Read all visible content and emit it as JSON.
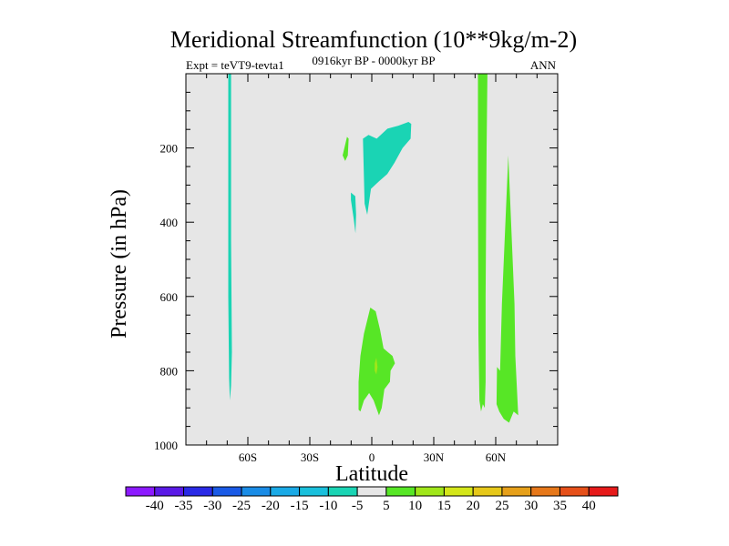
{
  "chart_data": {
    "type": "contour",
    "title": "Meridional Streamfunction (10**9kg/m-2)",
    "left_label": "Expt = teVT9-tevta1",
    "center_label": "0916kyr BP - 0000kyr BP",
    "right_label": "ANN",
    "xlabel": "Latitude",
    "ylabel": "Pressure (in hPa)",
    "xlim": [
      -90,
      90
    ],
    "ylim": [
      1000,
      0
    ],
    "x_ticks": [
      {
        "value": -60,
        "label": "60S"
      },
      {
        "value": -30,
        "label": "30S"
      },
      {
        "value": 0,
        "label": "0"
      },
      {
        "value": 30,
        "label": "30N"
      },
      {
        "value": 60,
        "label": "60N"
      }
    ],
    "y_ticks": [
      {
        "value": 200,
        "label": "200"
      },
      {
        "value": 400,
        "label": "400"
      },
      {
        "value": 600,
        "label": "600"
      },
      {
        "value": 800,
        "label": "800"
      },
      {
        "value": 1000,
        "label": "1000"
      }
    ],
    "background_fill": "#e6e6e6",
    "regions": [
      {
        "name": "neg-60s-column",
        "level": -10,
        "color": "#1ad4b4",
        "points": [
          [
            -69.5,
            0
          ],
          [
            -68.1,
            0
          ],
          [
            -68.1,
            450
          ],
          [
            -67.7,
            750
          ],
          [
            -68.1,
            840
          ],
          [
            -68.7,
            880
          ],
          [
            -69.1,
            820
          ],
          [
            -69.5,
            600
          ]
        ]
      },
      {
        "name": "neg-upper-cell",
        "level": -10,
        "color": "#1ad4b4",
        "points": [
          [
            -3.5,
            350
          ],
          [
            -4.3,
            175
          ],
          [
            -1.6,
            165
          ],
          [
            2.4,
            175
          ],
          [
            7.6,
            148
          ],
          [
            12.9,
            140
          ],
          [
            17.8,
            130
          ],
          [
            19.1,
            135
          ],
          [
            18.8,
            175
          ],
          [
            14.9,
            200
          ],
          [
            11.0,
            240
          ],
          [
            7.5,
            270
          ],
          [
            3.5,
            290
          ],
          [
            -0.4,
            310
          ],
          [
            -2.2,
            380
          ]
        ]
      },
      {
        "name": "neg-small-blob",
        "level": -10,
        "color": "#1ad4b4",
        "points": [
          [
            -10.1,
            320
          ],
          [
            -8.0,
            330
          ],
          [
            -7.6,
            380
          ],
          [
            -7.9,
            430
          ],
          [
            -8.8,
            390
          ],
          [
            -10.1,
            340
          ]
        ]
      },
      {
        "name": "pos-small-blob",
        "level": 10,
        "color": "#57e626",
        "points": [
          [
            -14.1,
            220
          ],
          [
            -12.0,
            170
          ],
          [
            -11.2,
            175
          ],
          [
            -11.6,
            220
          ],
          [
            -12.9,
            235
          ]
        ]
      },
      {
        "name": "pos-lower-cell",
        "level": 10,
        "color": "#57e626",
        "points": [
          [
            -6.4,
            905
          ],
          [
            -6.4,
            830
          ],
          [
            -5.5,
            760
          ],
          [
            -3.8,
            700
          ],
          [
            -0.7,
            630
          ],
          [
            1.9,
            640
          ],
          [
            4.0,
            690
          ],
          [
            5.7,
            740
          ],
          [
            7.8,
            750
          ],
          [
            10.0,
            760
          ],
          [
            11.2,
            780
          ],
          [
            9.1,
            800
          ],
          [
            8.8,
            830
          ],
          [
            6.1,
            850
          ],
          [
            4.8,
            900
          ],
          [
            3.5,
            920
          ],
          [
            0.9,
            880
          ],
          [
            -1.3,
            860
          ],
          [
            -3.8,
            880
          ],
          [
            -5.5,
            910
          ]
        ]
      },
      {
        "name": "pos-lower-core",
        "level": 15,
        "color": "#a0e61a",
        "points": [
          [
            1.4,
            780
          ],
          [
            2.2,
            765
          ],
          [
            2.8,
            790
          ],
          [
            2.2,
            810
          ],
          [
            1.4,
            800
          ]
        ]
      },
      {
        "name": "pos-50n-column",
        "level": 10,
        "color": "#57e626",
        "points": [
          [
            51.4,
            0
          ],
          [
            56.0,
            0
          ],
          [
            55.6,
            200
          ],
          [
            55.1,
            600
          ],
          [
            55.1,
            830
          ],
          [
            54.7,
            900
          ],
          [
            53.8,
            890
          ],
          [
            52.9,
            910
          ],
          [
            52.1,
            880
          ],
          [
            51.6,
            700
          ],
          [
            51.4,
            300
          ]
        ]
      },
      {
        "name": "pos-60n-column",
        "level": 10,
        "color": "#57e626",
        "points": [
          [
            60.6,
            790
          ],
          [
            62.1,
            800
          ],
          [
            63.0,
            620
          ],
          [
            66.1,
            220
          ],
          [
            69.1,
            620
          ],
          [
            69.5,
            760
          ],
          [
            70.9,
            920
          ],
          [
            68.7,
            910
          ],
          [
            66.5,
            940
          ],
          [
            63.9,
            930
          ],
          [
            61.7,
            910
          ],
          [
            60.4,
            890
          ]
        ]
      }
    ],
    "colorbar": {
      "levels": [
        -40,
        -35,
        -30,
        -25,
        -20,
        -15,
        -10,
        -5,
        5,
        10,
        15,
        20,
        25,
        30,
        35,
        40
      ],
      "colors": [
        "#8c1aff",
        "#5a1ae6",
        "#2a2ae6",
        "#1a5ae6",
        "#1a8ce6",
        "#1aaae6",
        "#1ac0dc",
        "#1ad4b4",
        "#e6e6e6",
        "#57e626",
        "#a0e61a",
        "#d4e61a",
        "#e6c81a",
        "#e6a01a",
        "#e6781a",
        "#e6501a",
        "#e61a1a"
      ]
    }
  }
}
